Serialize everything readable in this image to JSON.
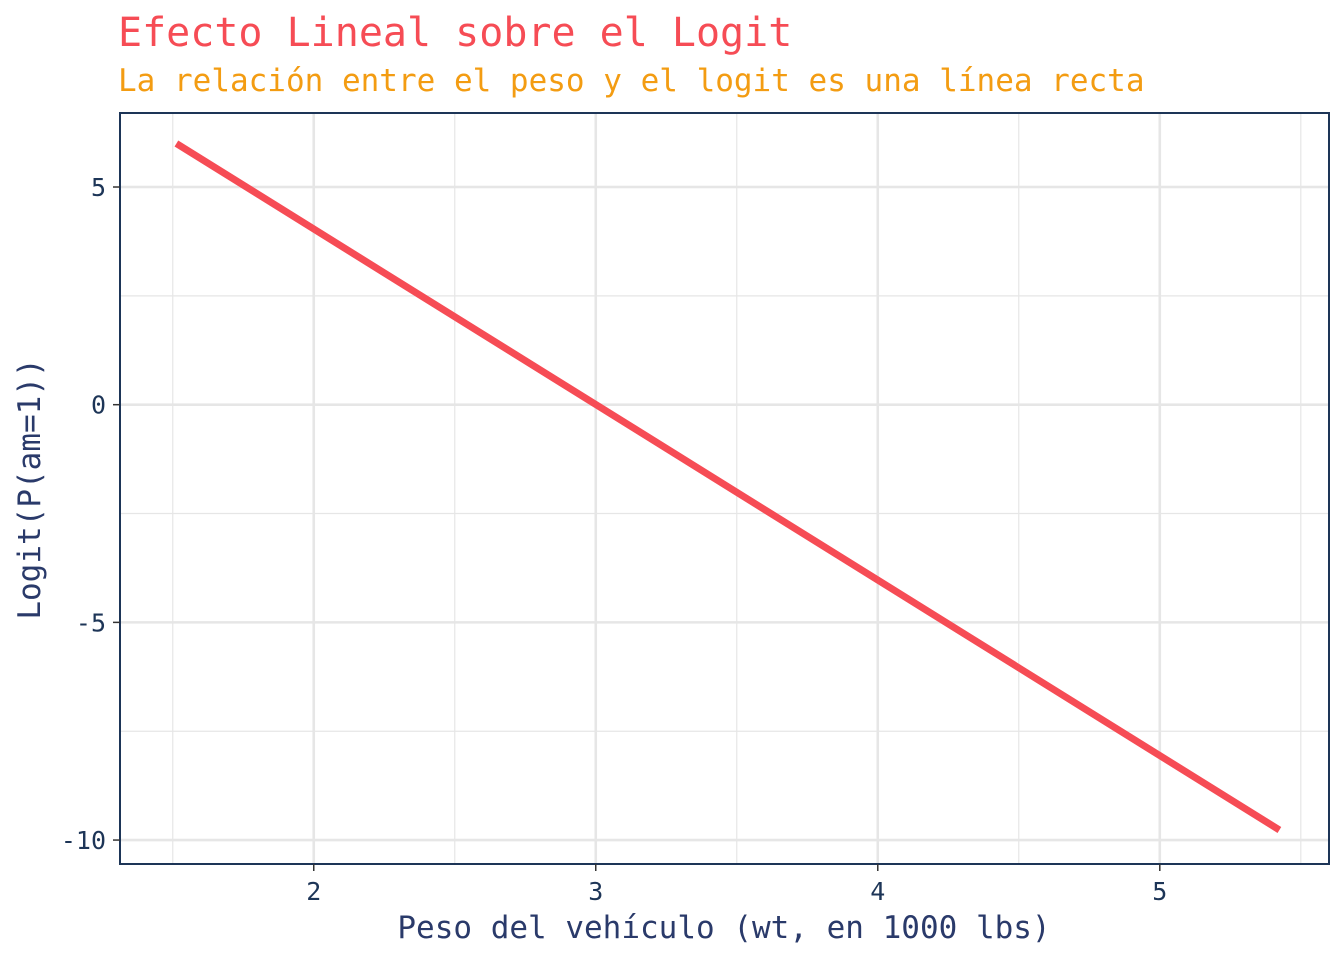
{
  "chart_data": {
    "type": "line",
    "title": "Efecto Lineal sobre el Logit",
    "subtitle": "La relación entre el peso y el logit es una línea recta",
    "xlabel": "Peso del vehículo (wt, en 1000 lbs)",
    "ylabel": "Logit(P(am=1))",
    "xlim": [
      1.313,
      5.6
    ],
    "ylim": [
      -10.55,
      6.7
    ],
    "x_ticks": [
      2,
      3,
      4,
      5
    ],
    "x_tick_labels": [
      "2",
      "3",
      "4",
      "5"
    ],
    "x_minor_ticks": [
      1.5,
      2.5,
      3.5,
      4.5,
      5.5
    ],
    "y_ticks": [
      5,
      0,
      -5,
      -10
    ],
    "y_tick_labels": [
      "5",
      "0",
      "-5",
      "-10"
    ],
    "y_minor_ticks": [
      2.5,
      -2.5,
      -7.5
    ],
    "grid": true,
    "series": [
      {
        "x": [
          1.513,
          5.424
        ],
        "values": [
          6.0,
          -9.77
        ]
      }
    ],
    "colors": {
      "line": "#f64c55",
      "title": "#f64c55",
      "subtitle": "#f39c12",
      "panel_border": "#1d3557",
      "grid": "#e6e6e6"
    }
  }
}
